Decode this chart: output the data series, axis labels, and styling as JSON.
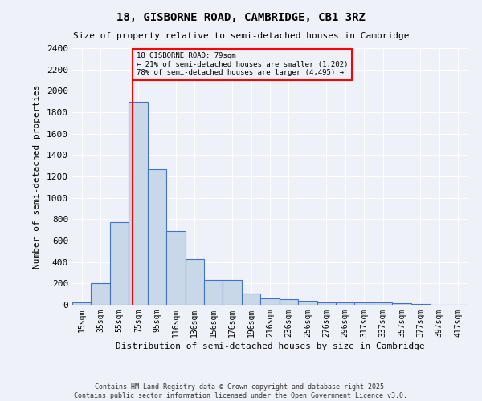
{
  "title_line1": "18, GISBORNE ROAD, CAMBRIDGE, CB1 3RZ",
  "title_line2": "Size of property relative to semi-detached houses in Cambridge",
  "xlabel": "Distribution of semi-detached houses by size in Cambridge",
  "ylabel": "Number of semi-detached properties",
  "bin_labels": [
    "15sqm",
    "35sqm",
    "55sqm",
    "75sqm",
    "95sqm",
    "116sqm",
    "136sqm",
    "156sqm",
    "176sqm",
    "196sqm",
    "216sqm",
    "236sqm",
    "256sqm",
    "276sqm",
    "296sqm",
    "317sqm",
    "337sqm",
    "357sqm",
    "377sqm",
    "397sqm",
    "417sqm"
  ],
  "bar_heights": [
    25,
    200,
    770,
    1900,
    1270,
    690,
    430,
    230,
    230,
    105,
    60,
    55,
    35,
    25,
    20,
    20,
    20,
    15,
    10,
    0,
    0
  ],
  "bar_color": "#c8d8e8",
  "bar_edge_color": "#4472c4",
  "bg_color": "#eef2f8",
  "grid_color": "#ffffff",
  "annotation_title": "18 GISBORNE ROAD: 79sqm",
  "annotation_line1": "← 21% of semi-detached houses are smaller (1,202)",
  "annotation_line2": "78% of semi-detached houses are larger (4,495) →",
  "ylim_max": 2400,
  "yticks": [
    0,
    200,
    400,
    600,
    800,
    1000,
    1200,
    1400,
    1600,
    1800,
    2000,
    2200,
    2400
  ],
  "footer_line1": "Contains HM Land Registry data © Crown copyright and database right 2025.",
  "footer_line2": "Contains public sector information licensed under the Open Government Licence v3.0."
}
